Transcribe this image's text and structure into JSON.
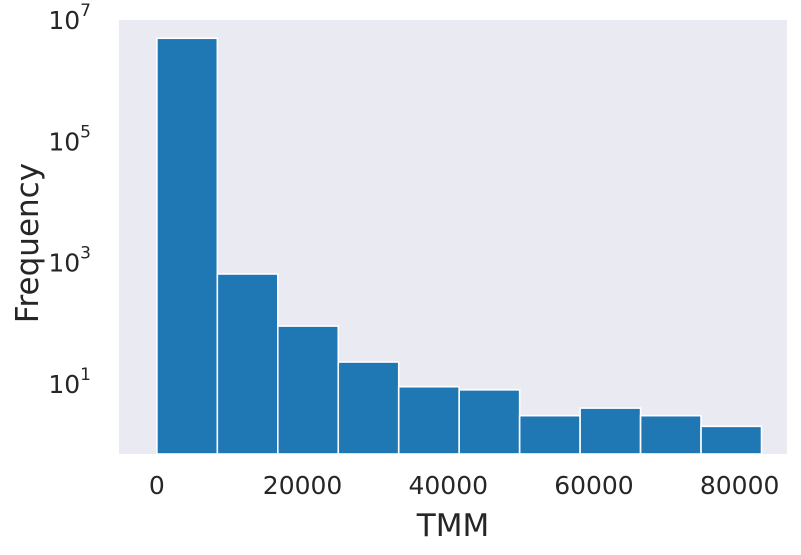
{
  "chart_data": {
    "type": "bar",
    "subtype": "histogram",
    "title": "",
    "xlabel": "TMM",
    "ylabel": "Frequency",
    "yscale": "log",
    "xlim": [
      -5200,
      86500
    ],
    "ylim": [
      0.7,
      10000000
    ],
    "grid": false,
    "background_color": "#eaeaf2",
    "bar_color": "#1f77b4",
    "bar_edge_color": "#ffffff",
    "x_ticks": [
      0,
      20000,
      40000,
      60000,
      80000
    ],
    "x_tick_labels": [
      "0",
      "20000",
      "40000",
      "60000",
      "80000"
    ],
    "y_ticks": [
      {
        "value": 10,
        "base": "10",
        "exponent": "1"
      },
      {
        "value": 1000,
        "base": "10",
        "exponent": "3"
      },
      {
        "value": 100000,
        "base": "10",
        "exponent": "5"
      },
      {
        "value": 10000000,
        "base": "10",
        "exponent": "7"
      }
    ],
    "bins": [
      {
        "start": 0,
        "end": 8300,
        "value": 5000000
      },
      {
        "start": 8300,
        "end": 16600,
        "value": 650
      },
      {
        "start": 16600,
        "end": 24900,
        "value": 90
      },
      {
        "start": 24900,
        "end": 33200,
        "value": 23
      },
      {
        "start": 33200,
        "end": 41500,
        "value": 9
      },
      {
        "start": 41500,
        "end": 49800,
        "value": 8
      },
      {
        "start": 49800,
        "end": 58100,
        "value": 3
      },
      {
        "start": 58100,
        "end": 66400,
        "value": 4
      },
      {
        "start": 66400,
        "end": 74700,
        "value": 3
      },
      {
        "start": 74700,
        "end": 83000,
        "value": 2
      }
    ]
  }
}
